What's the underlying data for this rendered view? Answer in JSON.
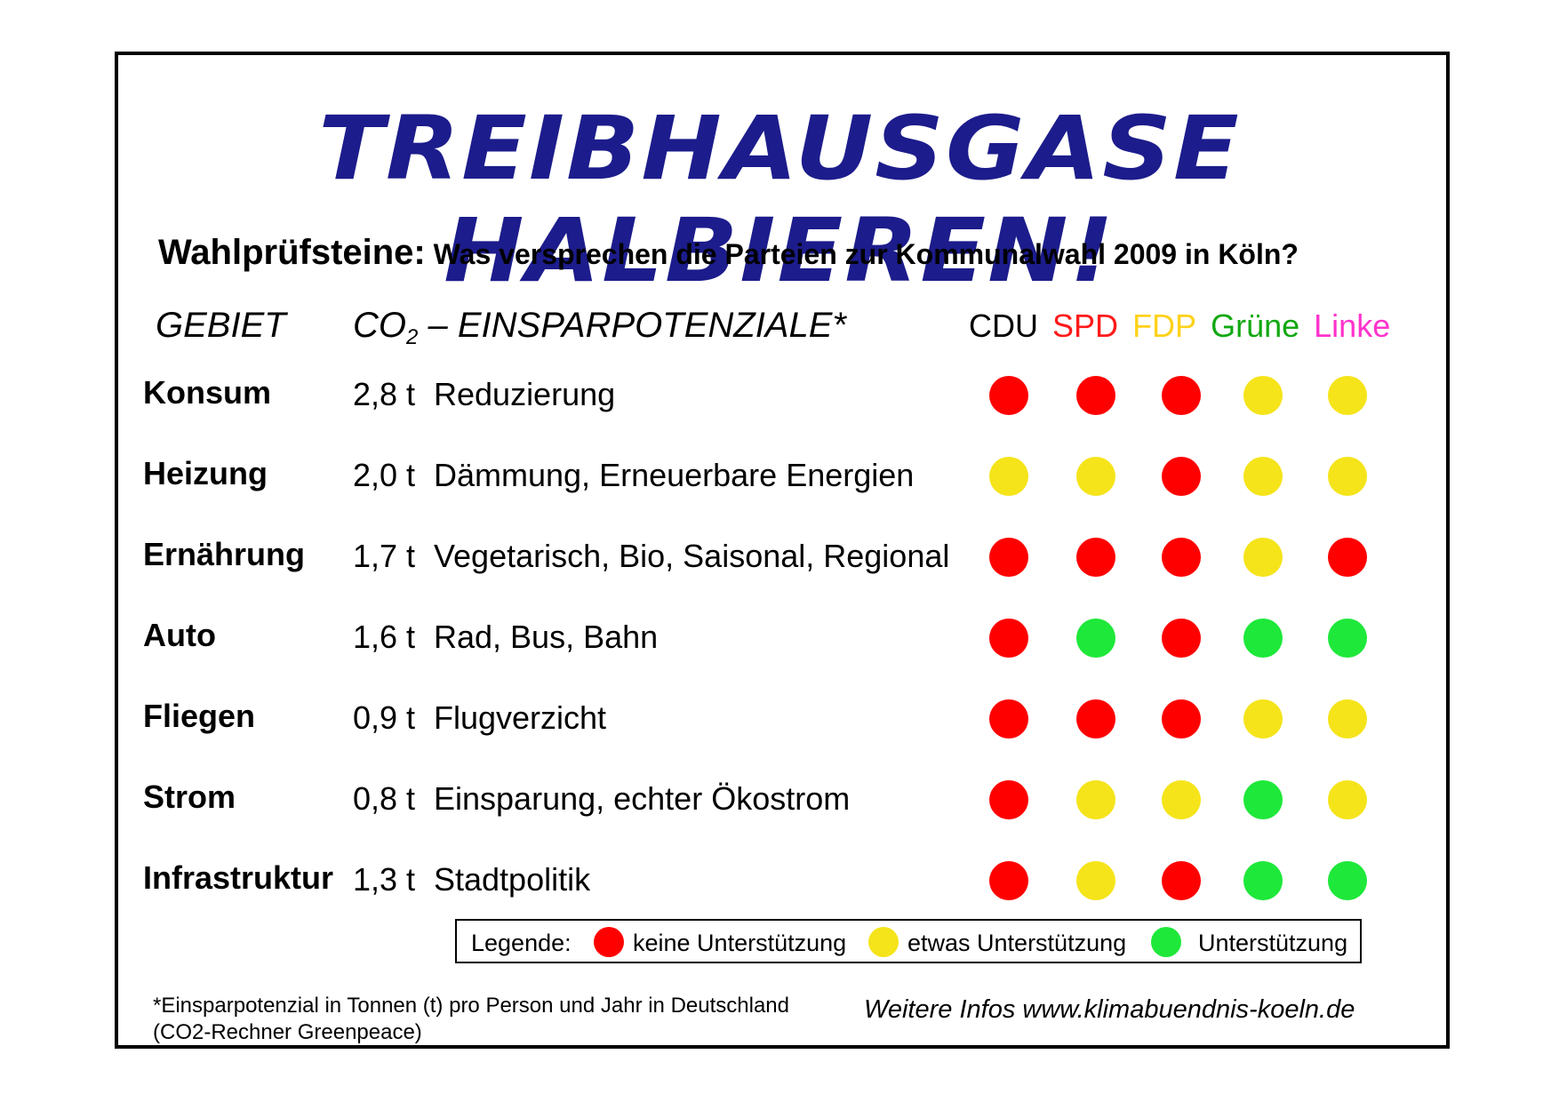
{
  "title": "TREIBHAUSGASE HALBIEREN!",
  "subtitle": {
    "lead": "Wahlprüfsteine:",
    "rest": " Was versprechen die Parteien zur Kommunalwahl 2009 in Köln?"
  },
  "headers": {
    "gebiet": "GEBIET",
    "co2_prefix": "CO",
    "co2_sub": "2",
    "co2_rest": " – EINSPARPOTENZIALE*"
  },
  "parties": [
    {
      "name": "CDU",
      "color": "#000000"
    },
    {
      "name": "SPD",
      "color": "#ff1a1a"
    },
    {
      "name": "FDP",
      "color": "#ffd21a"
    },
    {
      "name": "Grüne",
      "color": "#12a812"
    },
    {
      "name": "Linke",
      "color": "#ff33cc"
    }
  ],
  "ratings_colors": {
    "red": "#ff0000",
    "yellow": "#f5e41a",
    "green": "#1ee83a"
  },
  "rows": [
    {
      "gebiet": "Konsum",
      "amount": "2,8 t",
      "measure": "Reduzierung",
      "ratings": [
        "red",
        "red",
        "red",
        "yellow",
        "yellow"
      ]
    },
    {
      "gebiet": "Heizung",
      "amount": "2,0 t",
      "measure": "Dämmung, Erneuerbare Energien",
      "ratings": [
        "yellow",
        "yellow",
        "red",
        "yellow",
        "yellow"
      ]
    },
    {
      "gebiet": "Ernährung",
      "amount": "1,7 t",
      "measure": "Vegetarisch, Bio, Saisonal, Regional",
      "ratings": [
        "red",
        "red",
        "red",
        "yellow",
        "red"
      ]
    },
    {
      "gebiet": "Auto",
      "amount": "1,6 t",
      "measure": "Rad, Bus, Bahn",
      "ratings": [
        "red",
        "green",
        "red",
        "green",
        "green"
      ]
    },
    {
      "gebiet": "Fliegen",
      "amount": "0,9 t",
      "measure": "Flugverzicht",
      "ratings": [
        "red",
        "red",
        "red",
        "yellow",
        "yellow"
      ]
    },
    {
      "gebiet": "Strom",
      "amount": "0,8 t",
      "measure": "Einsparung, echter Ökostrom",
      "ratings": [
        "red",
        "yellow",
        "yellow",
        "green",
        "yellow"
      ]
    },
    {
      "gebiet": "Infrastruktur",
      "amount": "1,3 t",
      "measure": "Stadtpolitik",
      "ratings": [
        "red",
        "yellow",
        "red",
        "green",
        "green"
      ]
    }
  ],
  "legend": {
    "label": "Legende:",
    "red": "keine Unterstützung",
    "yellow": "etwas Unterstützung",
    "green": "Unterstützung"
  },
  "footnote_line1": "*Einsparpotenzial in Tonnen (t) pro Person und Jahr in Deutschland",
  "footnote_line2": "(CO2-Rechner Greenpeace)",
  "more_info": "Weitere Infos www.klimabuendnis-koeln.de"
}
